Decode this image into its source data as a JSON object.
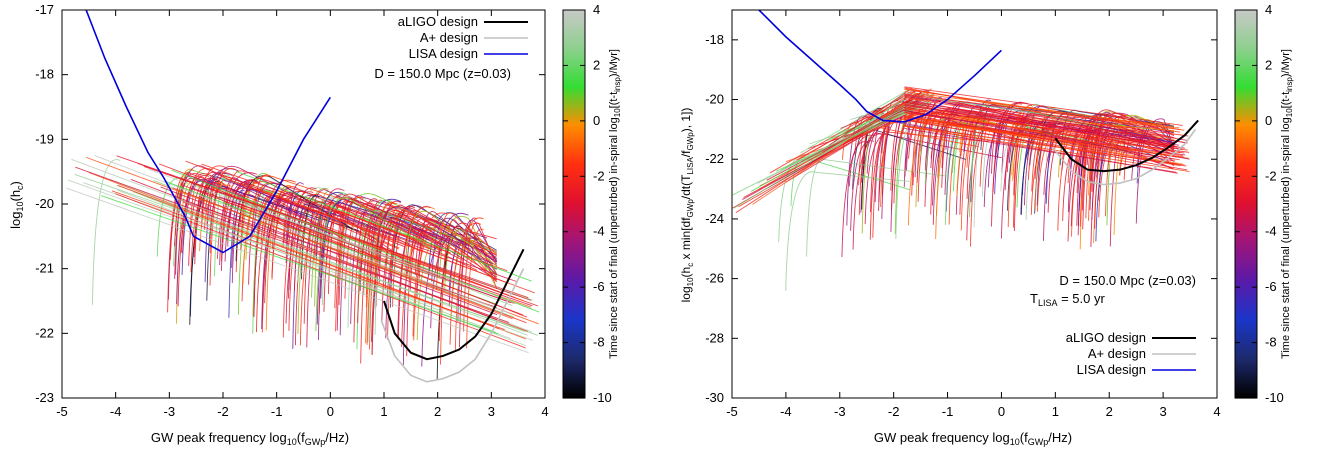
{
  "colorbar_label_main": "Time since start of final (unperturbed) in-spiral log",
  "colorbar_label_sub": "10",
  "colorbar_label_tail": "[(t-t",
  "colorbar_label_sub2": "insp",
  "colorbar_label_end": ")/Myr]",
  "colormap": [
    "#000000",
    "#1e2a6e",
    "#1a36c8",
    "#5a1aa8",
    "#a0157a",
    "#e01030",
    "#ff3010",
    "#ff8c00",
    "#33dd33",
    "#8fd08f",
    "#c8c8c8"
  ],
  "chart_data": [
    {
      "type": "line",
      "xlabel": "GW peak frequency log10(fGWp/Hz)",
      "ylabel": "log10(hc)",
      "xlim": [
        -5,
        4
      ],
      "ylim": [
        -23,
        -17
      ],
      "xticks": [
        -5,
        -4,
        -3,
        -2,
        -1,
        0,
        1,
        2,
        3,
        4
      ],
      "yticks": [
        -23,
        -22,
        -21,
        -20,
        -19,
        -18,
        -17
      ],
      "annotation": "D = 150.0 Mpc (z=0.03)",
      "legend_position": "top-right",
      "colorbar": {
        "min": -10,
        "max": 4,
        "ticks": [
          -10,
          -8,
          -6,
          -4,
          -2,
          0,
          2,
          4
        ]
      },
      "series": [
        {
          "name": "aLIGO design",
          "color": "#000000",
          "x": [
            1.0,
            1.2,
            1.5,
            1.8,
            2.1,
            2.4,
            2.7,
            3.0,
            3.3,
            3.6
          ],
          "y": [
            -21.5,
            -22.0,
            -22.3,
            -22.4,
            -22.35,
            -22.25,
            -22.05,
            -21.7,
            -21.2,
            -20.7
          ]
        },
        {
          "name": "A+ design",
          "color": "#c0c0c0",
          "x": [
            0.95,
            1.2,
            1.5,
            1.8,
            2.1,
            2.4,
            2.7,
            3.0,
            3.3,
            3.6
          ],
          "y": [
            -21.8,
            -22.35,
            -22.65,
            -22.75,
            -22.7,
            -22.6,
            -22.4,
            -22.0,
            -21.5,
            -21.0
          ]
        },
        {
          "name": "LISA design",
          "color": "#0000dd",
          "x": [
            -4.55,
            -4.2,
            -3.8,
            -3.4,
            -3.1,
            -2.9,
            -2.7,
            -2.55,
            -2.0,
            -1.5,
            -1.0,
            -0.5,
            0.0
          ],
          "y": [
            -17.0,
            -17.75,
            -18.5,
            -19.2,
            -19.6,
            -19.9,
            -20.2,
            -20.5,
            -20.75,
            -20.5,
            -19.8,
            -19.0,
            -18.35
          ]
        }
      ]
    },
    {
      "type": "line",
      "xlabel": "GW peak frequency log10(fGWp/Hz)",
      "ylabel": "log10(hc x min[dfGWp/dt(TLISA/fGWp), 1])",
      "xlim": [
        -5,
        4
      ],
      "ylim": [
        -30,
        -17
      ],
      "xticks": [
        -5,
        -4,
        -3,
        -2,
        -1,
        0,
        1,
        2,
        3,
        4
      ],
      "yticks": [
        -30,
        -28,
        -26,
        -24,
        -22,
        -20,
        -18
      ],
      "annotation": "D = 150.0 Mpc (z=0.03)",
      "annotation2": "TLISA = 5.0 yr",
      "legend_position": "bottom-right",
      "colorbar": {
        "min": -10,
        "max": 4,
        "ticks": [
          -10,
          -8,
          -6,
          -4,
          -2,
          0,
          2,
          4
        ]
      },
      "series": [
        {
          "name": "aLIGO design",
          "color": "#000000",
          "x": [
            1.0,
            1.3,
            1.6,
            1.9,
            2.2,
            2.5,
            2.8,
            3.1,
            3.4,
            3.65
          ],
          "y": [
            -21.3,
            -22.0,
            -22.35,
            -22.4,
            -22.35,
            -22.2,
            -21.95,
            -21.6,
            -21.2,
            -20.7
          ]
        },
        {
          "name": "A+ design",
          "color": "#c0c0c0",
          "x": [
            0.95,
            1.3,
            1.6,
            1.9,
            2.2,
            2.5,
            2.8,
            3.1,
            3.4,
            3.6
          ],
          "y": [
            -21.6,
            -22.4,
            -22.75,
            -22.85,
            -22.8,
            -22.65,
            -22.35,
            -21.95,
            -21.5,
            -21.0
          ]
        },
        {
          "name": "LISA design",
          "color": "#0000dd",
          "x": [
            -4.5,
            -4.0,
            -3.5,
            -3.0,
            -2.7,
            -2.5,
            -2.2,
            -1.8,
            -1.4,
            -1.0,
            -0.5,
            0.0
          ],
          "y": [
            -17.0,
            -17.9,
            -18.7,
            -19.5,
            -20.0,
            -20.4,
            -20.7,
            -20.75,
            -20.5,
            -20.0,
            -19.2,
            -18.35
          ]
        }
      ]
    }
  ]
}
